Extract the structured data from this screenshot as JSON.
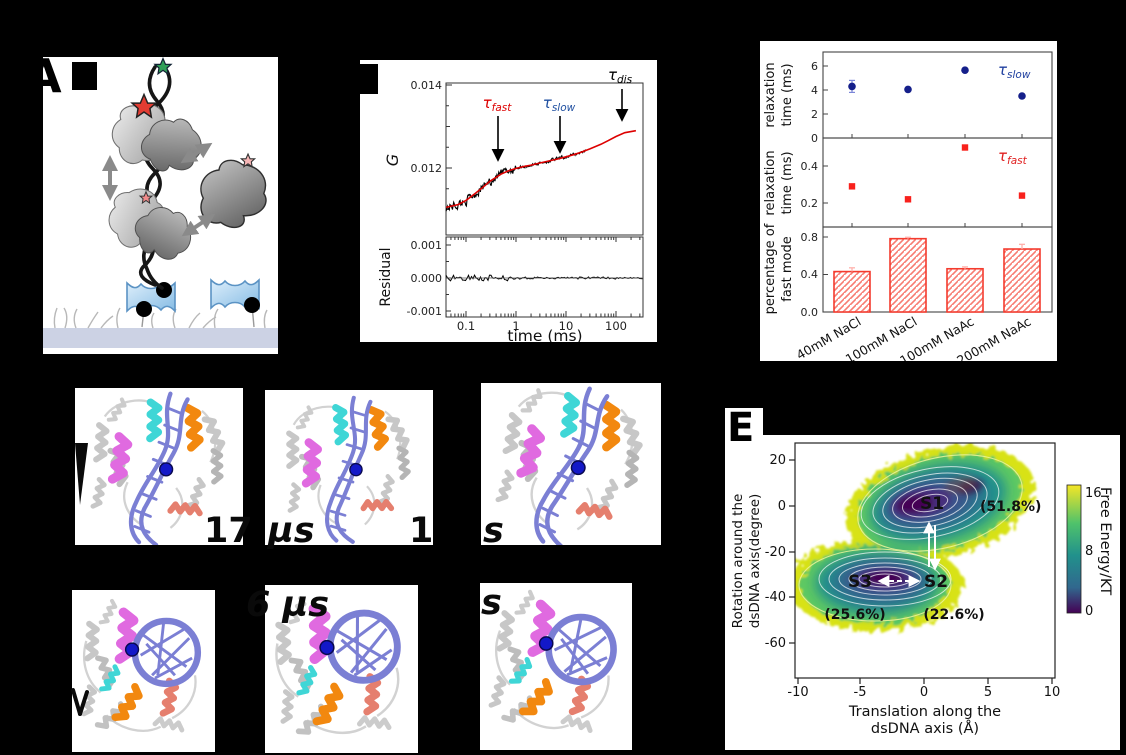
{
  "figure": {
    "background": "#000000"
  },
  "panel_a": {
    "label": "A"
  },
  "panel_b": {
    "ylabel": "G",
    "res_ylabel": "Residual",
    "xlabel": "time (ms)",
    "yticks": [
      "0.014",
      "0.012"
    ],
    "res_yticks": [
      "0.001",
      "0.000",
      "-0.001"
    ],
    "xticks": [
      "0.1",
      "1",
      "10",
      "100"
    ],
    "tau_fast_sym": "τ",
    "tau_fast_sub": "fast",
    "tau_slow_sym": "τ",
    "tau_slow_sub": "slow",
    "tau_dis_sym": "τ",
    "tau_dis_sub": "dis"
  },
  "panel_c": {
    "ylabel_top_line1": "relaxation",
    "ylabel_top_line2": "time (ms)",
    "ylabel_mid_line1": "relaxation",
    "ylabel_mid_line2": "time (ms)",
    "ylabel_bot_line1": "percentage of",
    "ylabel_bot_line2": "fast mode",
    "yticks_top": [
      "6",
      "4",
      "2",
      "0"
    ],
    "yticks_mid": [
      "0.4",
      "0.2"
    ],
    "yticks_bot": [
      "0.8",
      "0.4",
      "0.0"
    ],
    "legend_slow_sym": "τ",
    "legend_slow_sub": "slow",
    "legend_fast_sym": "τ",
    "legend_fast_sub": "fast",
    "categories": [
      "40mM NaCl",
      "100mM NaCl",
      "100mM NaAc",
      "200mM NaAc"
    ]
  },
  "panel_d": {
    "time_label_fragments": {
      "r1_a": "17",
      "r1_b": "µs",
      "r1_c": "1",
      "r1_d": "s",
      "r2_a": "6 µs",
      "r2_b": "s"
    }
  },
  "panel_e": {
    "label": "E",
    "xlabel_line1": "Translation along the",
    "xlabel_line2": "dsDNA axis (Å)",
    "ylabel_line1": "Rotation around the",
    "ylabel_line2": "dsDNA axis(degree)",
    "xticks": [
      "-10",
      "-5",
      "0",
      "5",
      "10"
    ],
    "yticks": [
      "20",
      "0",
      "-20",
      "-40",
      "-60"
    ],
    "colorbar_ticks": [
      "16",
      "8",
      "0"
    ],
    "colorbar_label": "Free Energy/KT",
    "s1": "S1",
    "s1_pct": "(51.8%)",
    "s2": "S2",
    "s2_pct": "(22.6%)",
    "s3": "S3",
    "s3_pct": "(25.6%)"
  },
  "chart_data": [
    {
      "panel": "B",
      "type": "line",
      "xlabel": "time (ms)",
      "ylabel": "G",
      "xscale": "log",
      "xticks": [
        0.1,
        1,
        10,
        100
      ],
      "yticks": [
        0.012,
        0.014
      ],
      "fit_color": "#dd0000",
      "data_color": "#000000",
      "fit_points": [
        [
          0.04,
          0.01105
        ],
        [
          0.07,
          0.01112
        ],
        [
          0.1,
          0.01122
        ],
        [
          0.15,
          0.01138
        ],
        [
          0.2,
          0.0115
        ],
        [
          0.3,
          0.01168
        ],
        [
          0.5,
          0.01185
        ],
        [
          0.7,
          0.01193
        ],
        [
          1,
          0.01199
        ],
        [
          1.5,
          0.01204
        ],
        [
          2,
          0.01207
        ],
        [
          3,
          0.01212
        ],
        [
          5,
          0.01218
        ],
        [
          7,
          0.01222
        ],
        [
          10,
          0.01227
        ],
        [
          15,
          0.01233
        ],
        [
          20,
          0.01238
        ],
        [
          30,
          0.01246
        ],
        [
          50,
          0.01257
        ],
        [
          70,
          0.01266
        ],
        [
          100,
          0.01276
        ],
        [
          150,
          0.01285
        ],
        [
          250,
          0.0129
        ],
        [
          350,
          0.01291
        ]
      ],
      "annotations": [
        {
          "text": "τ_fast",
          "x_ms": 0.45,
          "color": "#dd0000"
        },
        {
          "text": "τ_slow",
          "x_ms": 6.5,
          "color": "#1f4fa0"
        },
        {
          "text": "τ_dis",
          "x_ms": 90,
          "color": "#000000"
        }
      ],
      "residual": {
        "ylabel": "Residual",
        "yticks": [
          -0.001,
          0.0,
          0.001
        ],
        "mean": 0.0,
        "noise_amplitude": 0.0002
      }
    },
    {
      "panel": "C",
      "categories": [
        "40mM NaCl",
        "100mM NaCl",
        "100mM NaAc",
        "200mM NaAc"
      ],
      "subplots": [
        {
          "type": "scatter",
          "marker": "circle",
          "color": "#151f8a",
          "legend": "τ_slow",
          "ylabel": "relaxation time (ms)",
          "yticks": [
            0,
            2,
            4,
            6
          ],
          "values": [
            4.3,
            4.05,
            5.65,
            3.5
          ],
          "errors": [
            0.5,
            0.12,
            0.12,
            0.12
          ]
        },
        {
          "type": "scatter",
          "marker": "square",
          "color": "#f8211c",
          "legend": "τ_fast",
          "ylabel": "relaxation time (ms)",
          "yticks": [
            0.2,
            0.4
          ],
          "values": [
            0.29,
            0.22,
            0.5,
            0.24
          ],
          "errors": [
            0.01,
            0.01,
            0.01,
            0.01
          ]
        },
        {
          "type": "bar",
          "color": "#f43b2e",
          "hatch": "diagonal",
          "ylabel": "percentage of fast mode",
          "yticks": [
            0.0,
            0.4,
            0.8
          ],
          "values": [
            0.43,
            0.78,
            0.46,
            0.67
          ],
          "errors": [
            0.04,
            0.015,
            0.02,
            0.05
          ]
        }
      ]
    },
    {
      "panel": "E",
      "type": "heatmap",
      "xlabel": "Translation along the dsDNA axis (Å)",
      "ylabel": "Rotation around the dsDNA axis(degree)",
      "xlim": [
        -10,
        10
      ],
      "ylim": [
        -75,
        28
      ],
      "colorbar": {
        "label": "Free Energy/KT",
        "ticks": [
          0,
          8,
          16
        ],
        "colormap": "viridis"
      },
      "states": [
        {
          "name": "S1",
          "population": "(51.8%)",
          "x": -1,
          "y": 0
        },
        {
          "name": "S2",
          "population": "(22.6%)",
          "x": 0.5,
          "y": -33
        },
        {
          "name": "S3",
          "population": "(25.6%)",
          "x": -4.5,
          "y": -33
        }
      ],
      "transitions": [
        {
          "from": "S1",
          "to": "S2",
          "style": "solid-double-arrow"
        },
        {
          "from": "S3",
          "to": "S2",
          "style": "dashed-double-arrow"
        }
      ]
    }
  ]
}
